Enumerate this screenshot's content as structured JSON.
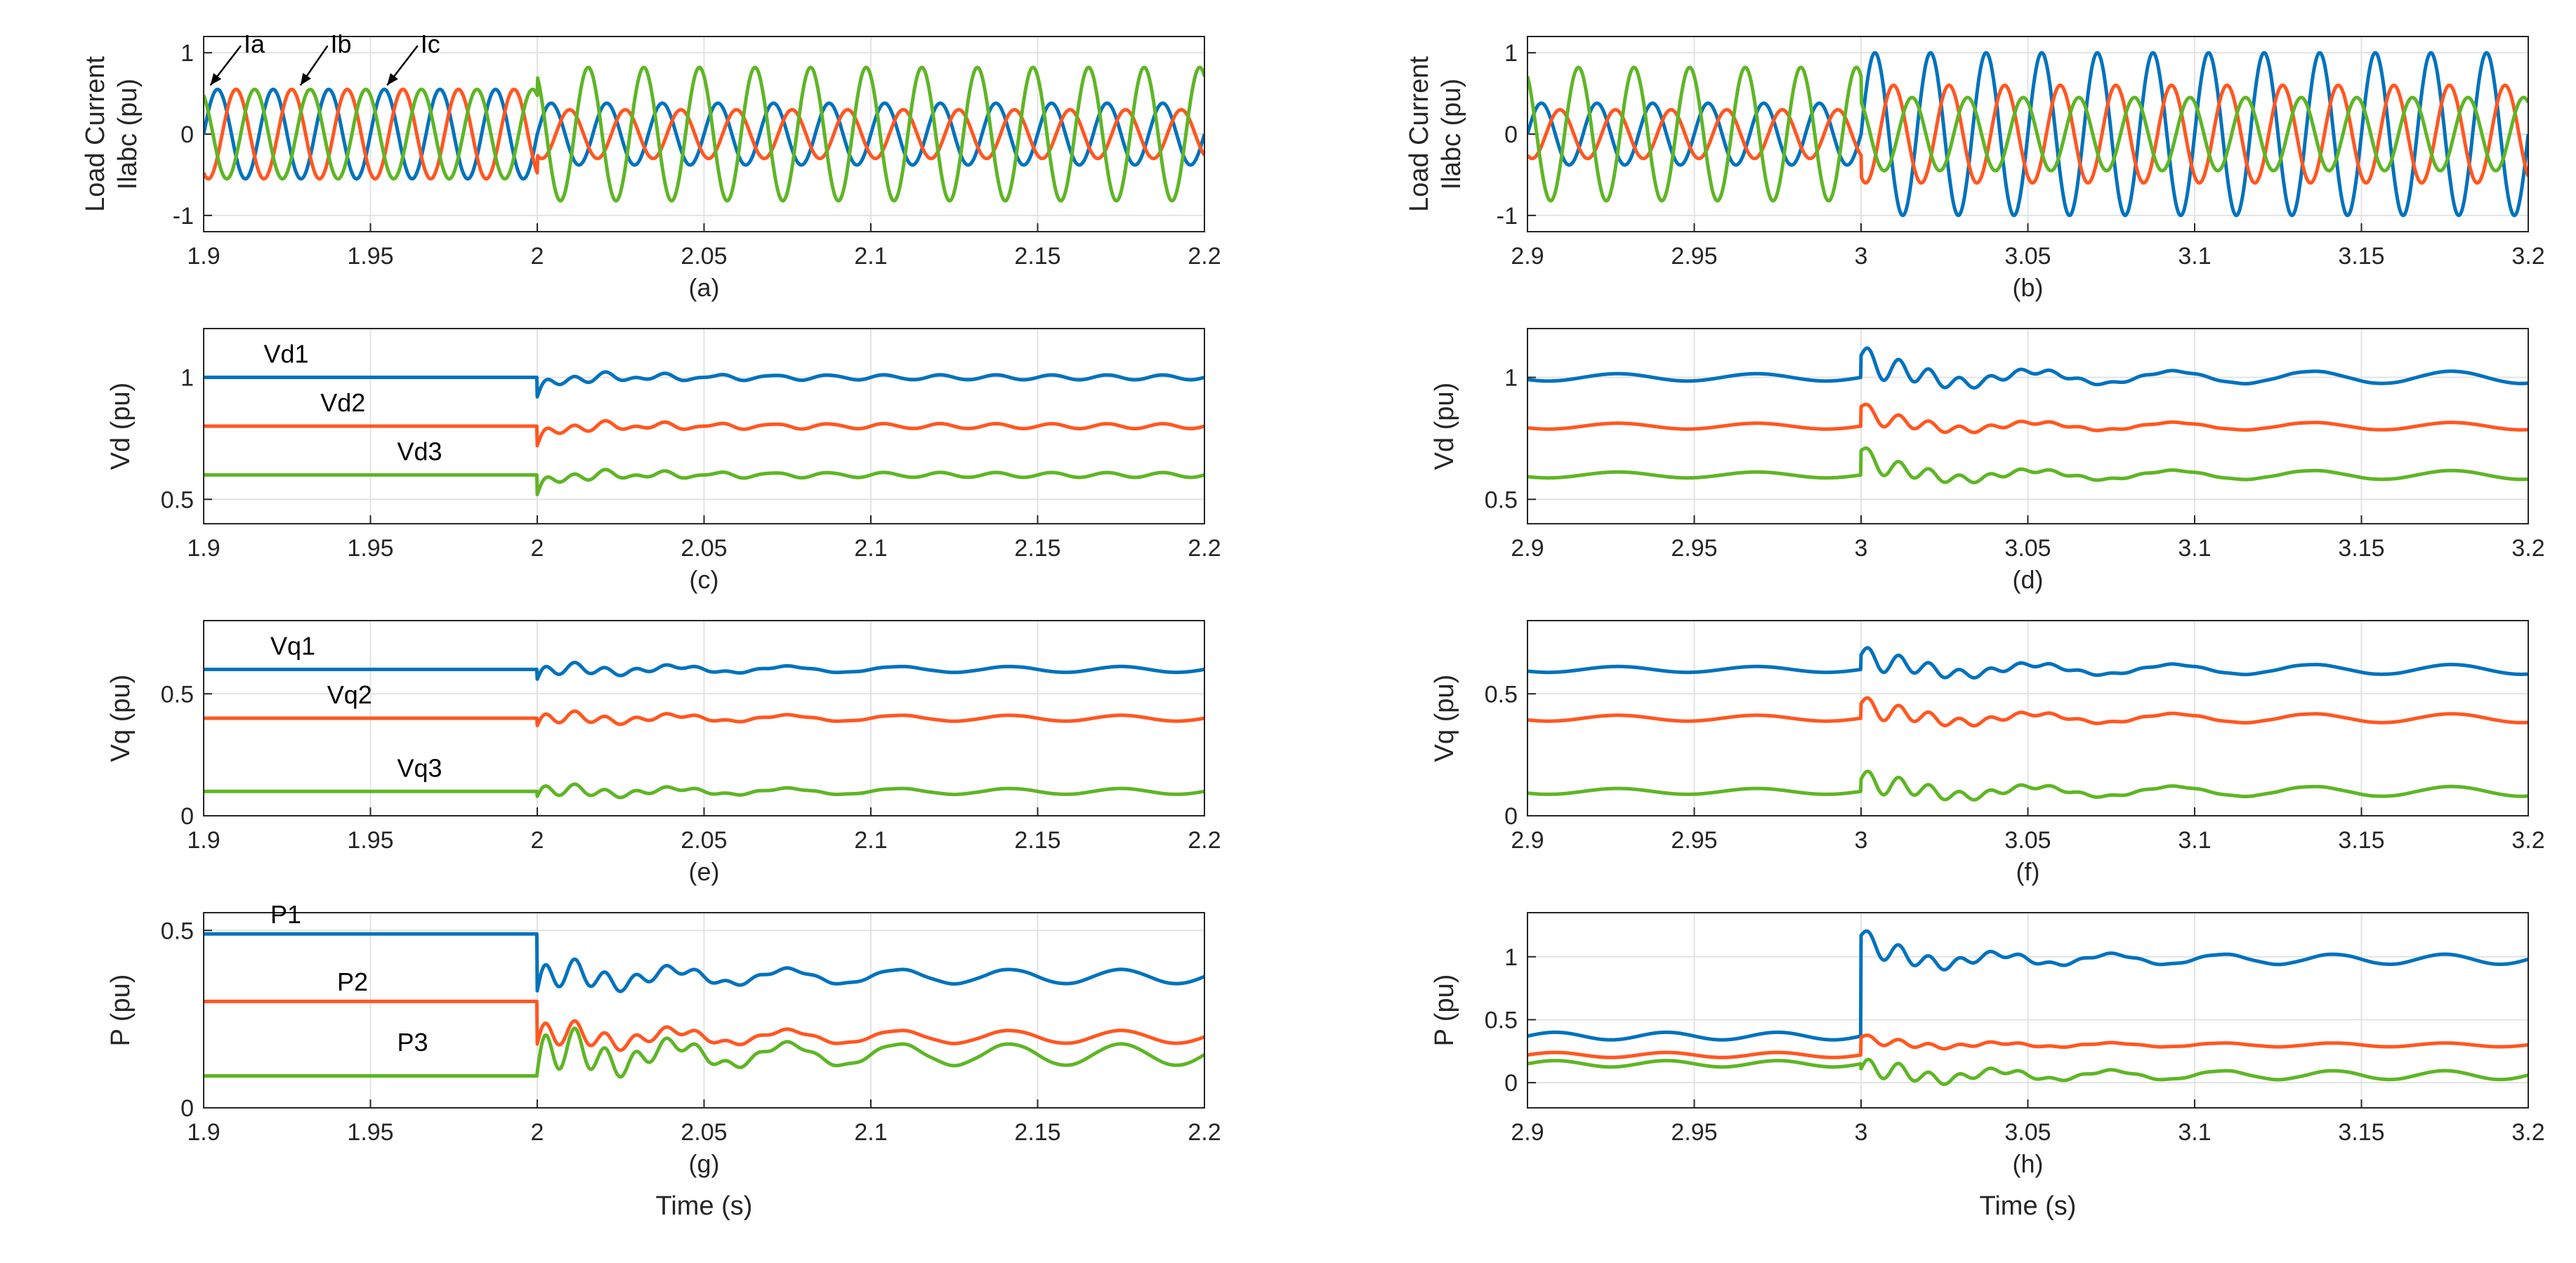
{
  "colors": {
    "series1": "#0072BD",
    "series2": "#FF5722",
    "series3": "#5FB526",
    "axis": "#262626",
    "grid": "#e3e3e3"
  },
  "chart_data": [
    {
      "id": "a",
      "type": "line",
      "caption": "(a)",
      "ylabel": [
        "Load Current",
        "Ilabc (pu)"
      ],
      "xlabel": "",
      "xlim": [
        1.9,
        2.2
      ],
      "ylim": [
        -1.2,
        1.2
      ],
      "xticks": [
        1.9,
        1.95,
        2,
        2.05,
        2.1,
        2.15,
        2.2
      ],
      "xtick_labels": [
        "1.9",
        "1.95",
        "2",
        "2.05",
        "2.1",
        "2.15",
        "2.2"
      ],
      "yticks": [
        -1,
        0,
        1
      ],
      "ytick_labels": [
        "-1",
        "0",
        "1"
      ],
      "series": [
        {
          "name": "Ia",
          "kind": "sine",
          "freq_hz": 60,
          "phase_deg": 0,
          "segments": [
            {
              "t0": 1.9,
              "t1": 2.0,
              "amp": 0.55
            },
            {
              "t0": 2.0,
              "t1": 2.2,
              "amp": 0.38
            }
          ]
        },
        {
          "name": "Ib",
          "kind": "sine",
          "freq_hz": 60,
          "phase_deg": -120,
          "segments": [
            {
              "t0": 1.9,
              "t1": 2.0,
              "amp": 0.55
            },
            {
              "t0": 2.0,
              "t1": 2.2,
              "amp": 0.3
            }
          ]
        },
        {
          "name": "Ic",
          "kind": "sine",
          "freq_hz": 60,
          "phase_deg": 120,
          "segments": [
            {
              "t0": 1.9,
              "t1": 2.0,
              "amp": 0.55
            },
            {
              "t0": 2.0,
              "t1": 2.2,
              "amp": 0.82
            }
          ]
        }
      ],
      "annotations": [
        {
          "text": "Ia",
          "x": 1.912,
          "y": 1.0,
          "arrow_to": [
            1.902,
            0.6
          ]
        },
        {
          "text": "Ib",
          "x": 1.938,
          "y": 1.0,
          "arrow_to": [
            1.929,
            0.6
          ]
        },
        {
          "text": "Ic",
          "x": 1.965,
          "y": 1.0,
          "arrow_to": [
            1.955,
            0.6
          ]
        }
      ]
    },
    {
      "id": "b",
      "type": "line",
      "caption": "(b)",
      "ylabel": [
        "Load Current",
        "Ilabc (pu)"
      ],
      "xlabel": "",
      "xlim": [
        2.9,
        3.2
      ],
      "ylim": [
        -1.2,
        1.2
      ],
      "xticks": [
        2.9,
        2.95,
        3,
        3.05,
        3.1,
        3.15,
        3.2
      ],
      "xtick_labels": [
        "2.9",
        "2.95",
        "3",
        "3.05",
        "3.1",
        "3.15",
        "3.2"
      ],
      "yticks": [
        -1,
        0,
        1
      ],
      "ytick_labels": [
        "-1",
        "0",
        "1"
      ],
      "series": [
        {
          "name": "Ia",
          "kind": "sine",
          "freq_hz": 60,
          "phase_deg": 0,
          "segments": [
            {
              "t0": 2.9,
              "t1": 3.0,
              "amp": 0.38
            },
            {
              "t0": 3.0,
              "t1": 3.2,
              "amp": 1.0
            }
          ]
        },
        {
          "name": "Ib",
          "kind": "sine",
          "freq_hz": 60,
          "phase_deg": -120,
          "segments": [
            {
              "t0": 2.9,
              "t1": 3.0,
              "amp": 0.3
            },
            {
              "t0": 3.0,
              "t1": 3.2,
              "amp": 0.6
            }
          ]
        },
        {
          "name": "Ic",
          "kind": "sine",
          "freq_hz": 60,
          "phase_deg": 120,
          "segments": [
            {
              "t0": 2.9,
              "t1": 3.0,
              "amp": 0.82
            },
            {
              "t0": 3.0,
              "t1": 3.2,
              "amp": 0.45
            }
          ]
        }
      ],
      "annotations": []
    },
    {
      "id": "c",
      "type": "line",
      "caption": "(c)",
      "ylabel": [
        "Vd (pu)"
      ],
      "xlabel": "",
      "xlim": [
        1.9,
        2.2
      ],
      "ylim": [
        0.4,
        1.2
      ],
      "xticks": [
        1.9,
        1.95,
        2,
        2.05,
        2.1,
        2.15,
        2.2
      ],
      "xtick_labels": [
        "1.9",
        "1.95",
        "2",
        "2.05",
        "2.1",
        "2.15",
        "2.2"
      ],
      "yticks": [
        0.5,
        1
      ],
      "ytick_labels": [
        "0.5",
        "1"
      ],
      "series": [
        {
          "name": "Vd1",
          "kind": "step",
          "level": 1.0,
          "t_step": 2.0,
          "dip": -0.08,
          "settle": 1.0,
          "ripple": 0.01,
          "ripple_hz": 60
        },
        {
          "name": "Vd2",
          "kind": "step",
          "level": 0.8,
          "t_step": 2.0,
          "dip": -0.08,
          "settle": 0.8,
          "ripple": 0.01,
          "ripple_hz": 60
        },
        {
          "name": "Vd3",
          "kind": "step",
          "level": 0.6,
          "t_step": 2.0,
          "dip": -0.08,
          "settle": 0.6,
          "ripple": 0.01,
          "ripple_hz": 60
        }
      ],
      "annotations": [
        {
          "text": "Vd1",
          "x": 1.918,
          "y": 1.06
        },
        {
          "text": "Vd2",
          "x": 1.935,
          "y": 0.86
        },
        {
          "text": "Vd3",
          "x": 1.958,
          "y": 0.66
        }
      ]
    },
    {
      "id": "d",
      "type": "line",
      "caption": "(d)",
      "ylabel": [
        "Vd (pu)"
      ],
      "xlabel": "",
      "xlim": [
        2.9,
        3.2
      ],
      "ylim": [
        0.4,
        1.2
      ],
      "xticks": [
        2.9,
        2.95,
        3,
        3.05,
        3.1,
        3.15,
        3.2
      ],
      "xtick_labels": [
        "2.9",
        "2.95",
        "3",
        "3.05",
        "3.1",
        "3.15",
        "3.2"
      ],
      "yticks": [
        0.5,
        1
      ],
      "ytick_labels": [
        "0.5",
        "1"
      ],
      "series": [
        {
          "name": "Vd1",
          "kind": "step",
          "level": 1.0,
          "t_step": 3.0,
          "dip": 0.09,
          "settle": 1.0,
          "ripple": 0.025,
          "ripple_hz": 24,
          "pre_ripple": 0.015
        },
        {
          "name": "Vd2",
          "kind": "step",
          "level": 0.8,
          "t_step": 3.0,
          "dip": 0.08,
          "settle": 0.8,
          "ripple": 0.015,
          "ripple_hz": 24,
          "pre_ripple": 0.012
        },
        {
          "name": "Vd3",
          "kind": "step",
          "level": 0.6,
          "t_step": 3.0,
          "dip": 0.1,
          "settle": 0.6,
          "ripple": 0.018,
          "ripple_hz": 24,
          "pre_ripple": 0.012
        }
      ],
      "annotations": []
    },
    {
      "id": "e",
      "type": "line",
      "caption": "(e)",
      "ylabel": [
        "Vq (pu)"
      ],
      "xlabel": "",
      "xlim": [
        1.9,
        2.2
      ],
      "ylim": [
        0,
        0.8
      ],
      "xticks": [
        1.9,
        1.95,
        2,
        2.05,
        2.1,
        2.15,
        2.2
      ],
      "xtick_labels": [
        "1.9",
        "1.95",
        "2",
        "2.05",
        "2.1",
        "2.15",
        "2.2"
      ],
      "yticks": [
        0,
        0.5
      ],
      "ytick_labels": [
        "0",
        "0.5"
      ],
      "series": [
        {
          "name": "Vq1",
          "kind": "step",
          "level": 0.6,
          "t_step": 2.0,
          "dip": -0.04,
          "settle": 0.6,
          "ripple": 0.012,
          "ripple_hz": 30
        },
        {
          "name": "Vq2",
          "kind": "step",
          "level": 0.4,
          "t_step": 2.0,
          "dip": -0.03,
          "settle": 0.4,
          "ripple": 0.012,
          "ripple_hz": 30
        },
        {
          "name": "Vq3",
          "kind": "step",
          "level": 0.1,
          "t_step": 2.0,
          "dip": -0.02,
          "settle": 0.1,
          "ripple": 0.012,
          "ripple_hz": 30
        }
      ],
      "annotations": [
        {
          "text": "Vq1",
          "x": 1.92,
          "y": 0.66
        },
        {
          "text": "Vq2",
          "x": 1.937,
          "y": 0.46
        },
        {
          "text": "Vq3",
          "x": 1.958,
          "y": 0.16
        }
      ]
    },
    {
      "id": "f",
      "type": "line",
      "caption": "(f)",
      "ylabel": [
        "Vq (pu)"
      ],
      "xlabel": "",
      "xlim": [
        2.9,
        3.2
      ],
      "ylim": [
        0,
        0.8
      ],
      "xticks": [
        2.9,
        2.95,
        3,
        3.05,
        3.1,
        3.15,
        3.2
      ],
      "xtick_labels": [
        "2.9",
        "2.95",
        "3",
        "3.05",
        "3.1",
        "3.15",
        "3.2"
      ],
      "yticks": [
        0,
        0.5
      ],
      "ytick_labels": [
        "0",
        "0.5"
      ],
      "series": [
        {
          "name": "Vq1",
          "kind": "step",
          "level": 0.6,
          "t_step": 3.0,
          "dip": 0.06,
          "settle": 0.6,
          "ripple": 0.02,
          "ripple_hz": 24,
          "pre_ripple": 0.012
        },
        {
          "name": "Vq2",
          "kind": "step",
          "level": 0.4,
          "t_step": 3.0,
          "dip": 0.06,
          "settle": 0.4,
          "ripple": 0.018,
          "ripple_hz": 24,
          "pre_ripple": 0.012
        },
        {
          "name": "Vq3",
          "kind": "step",
          "level": 0.1,
          "t_step": 3.0,
          "dip": 0.05,
          "settle": 0.1,
          "ripple": 0.02,
          "ripple_hz": 24,
          "pre_ripple": 0.012
        }
      ],
      "annotations": []
    },
    {
      "id": "g",
      "type": "line",
      "caption": "(g)",
      "ylabel": [
        "P (pu)"
      ],
      "xlabel": "Time (s)",
      "xlim": [
        1.9,
        2.2
      ],
      "ylim": [
        0,
        0.55
      ],
      "xticks": [
        1.9,
        1.95,
        2,
        2.05,
        2.1,
        2.15,
        2.2
      ],
      "xtick_labels": [
        "1.9",
        "1.95",
        "2",
        "2.05",
        "2.1",
        "2.15",
        "2.2"
      ],
      "yticks": [
        0,
        0.5
      ],
      "ytick_labels": [
        "0",
        "0.5"
      ],
      "series": [
        {
          "name": "P1",
          "kind": "step",
          "level": 0.49,
          "t_step": 2.0,
          "dip": -0.16,
          "settle": 0.37,
          "ripple": 0.02,
          "ripple_hz": 30
        },
        {
          "name": "P2",
          "kind": "step",
          "level": 0.3,
          "t_step": 2.0,
          "dip": -0.12,
          "settle": 0.2,
          "ripple": 0.018,
          "ripple_hz": 30
        },
        {
          "name": "P3",
          "kind": "step",
          "level": 0.09,
          "t_step": 2.0,
          "dip": 0.01,
          "settle": 0.15,
          "ripple": 0.03,
          "ripple_hz": 30
        }
      ],
      "annotations": [
        {
          "text": "P1",
          "x": 1.92,
          "y": 0.52
        },
        {
          "text": "P2",
          "x": 1.94,
          "y": 0.33
        },
        {
          "text": "P3",
          "x": 1.958,
          "y": 0.16
        }
      ]
    },
    {
      "id": "h",
      "type": "line",
      "caption": "(h)",
      "ylabel": [
        "P (pu)"
      ],
      "xlabel": "Time (s)",
      "xlim": [
        2.9,
        3.2
      ],
      "ylim": [
        -0.2,
        1.35
      ],
      "xticks": [
        2.9,
        2.95,
        3,
        3.05,
        3.1,
        3.15,
        3.2
      ],
      "xtick_labels": [
        "2.9",
        "2.95",
        "3",
        "3.05",
        "3.1",
        "3.15",
        "3.2"
      ],
      "yticks": [
        0,
        0.5,
        1
      ],
      "ytick_labels": [
        "0",
        "0.5",
        "1"
      ],
      "series": [
        {
          "name": "P1",
          "kind": "step",
          "level": 0.37,
          "t_step": 3.0,
          "dip": 0.8,
          "settle": 0.98,
          "ripple": 0.04,
          "ripple_hz": 30,
          "pre_ripple": 0.03
        },
        {
          "name": "P2",
          "kind": "step",
          "level": 0.22,
          "t_step": 3.0,
          "dip": 0.14,
          "settle": 0.3,
          "ripple": 0.015,
          "ripple_hz": 30,
          "pre_ripple": 0.02
        },
        {
          "name": "P3",
          "kind": "step",
          "level": 0.15,
          "t_step": 3.0,
          "dip": -0.04,
          "settle": 0.06,
          "ripple": 0.035,
          "ripple_hz": 30,
          "pre_ripple": 0.025
        }
      ],
      "annotations": []
    }
  ]
}
